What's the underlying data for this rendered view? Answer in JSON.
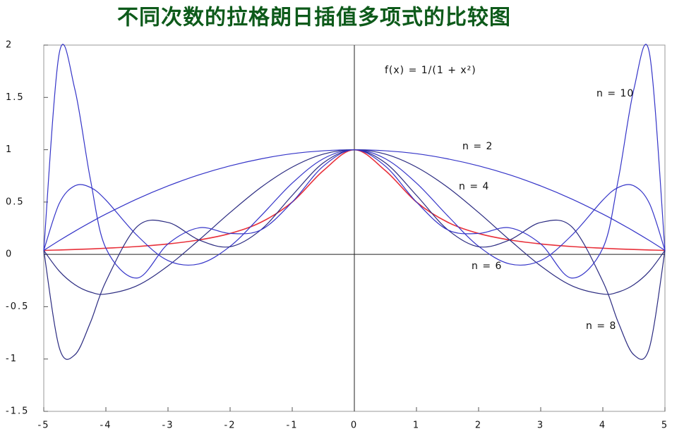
{
  "chart_data": {
    "type": "line",
    "title": "不同次数的拉格朗日插值多项式的比较图",
    "x": [
      -5,
      -4.75,
      -4.5,
      -4.25,
      -4,
      -3.5,
      -3,
      -2.5,
      -2,
      -1.5,
      -1,
      -0.5,
      0,
      0.5,
      1,
      1.5,
      2,
      2.5,
      3,
      3.5,
      4,
      4.25,
      4.5,
      4.75,
      5
    ],
    "series": [
      {
        "name": "f(x) = 1/(1 + x²)",
        "color": "#e8303a",
        "values": [
          0.038,
          0.042,
          0.047,
          0.052,
          0.059,
          0.075,
          0.1,
          0.138,
          0.2,
          0.308,
          0.5,
          0.8,
          1,
          0.8,
          0.5,
          0.308,
          0.2,
          0.138,
          0.1,
          0.075,
          0.059,
          0.052,
          0.047,
          0.042,
          0.038
        ]
      },
      {
        "name": "n = 2",
        "color": "#3434c8",
        "values": [
          0.038,
          0.132,
          0.221,
          0.305,
          0.385,
          0.529,
          0.654,
          0.76,
          0.846,
          0.913,
          0.962,
          0.99,
          1,
          0.99,
          0.962,
          0.913,
          0.846,
          0.76,
          0.654,
          0.529,
          0.385,
          0.305,
          0.221,
          0.132,
          0.038
        ]
      },
      {
        "name": "n = 4",
        "color": "#2a2a80",
        "values": [
          0.038,
          -0.16,
          -0.289,
          -0.36,
          -0.379,
          -0.3,
          -0.11,
          0.138,
          0.4,
          0.642,
          0.834,
          0.958,
          1,
          0.958,
          0.834,
          0.642,
          0.4,
          0.138,
          -0.11,
          -0.3,
          -0.379,
          -0.36,
          -0.289,
          -0.16,
          0.038
        ]
      },
      {
        "name": "n = 6",
        "color": "#3434c8",
        "values": [
          0.038,
          0.487,
          0.655,
          0.64,
          0.519,
          0.182,
          -0.059,
          -0.091,
          0.077,
          0.37,
          0.681,
          0.914,
          1,
          0.914,
          0.681,
          0.37,
          0.077,
          -0.091,
          -0.059,
          0.182,
          0.519,
          0.64,
          0.655,
          0.487,
          0.038
        ]
      },
      {
        "name": "n = 8",
        "color": "#2a2a80",
        "values": [
          0.038,
          -0.892,
          -0.96,
          -0.652,
          -0.259,
          0.264,
          0.305,
          0.138,
          0.073,
          0.237,
          0.564,
          0.874,
          1,
          0.874,
          0.564,
          0.237,
          0.073,
          0.138,
          0.305,
          0.264,
          -0.259,
          -0.652,
          -0.96,
          -0.892,
          0.038
        ]
      },
      {
        "name": "n = 10",
        "color": "#3434c8",
        "values": [
          0.038,
          1.924,
          1.579,
          0.719,
          0.059,
          -0.226,
          0.1,
          0.254,
          0.2,
          0.235,
          0.5,
          0.843,
          1,
          0.843,
          0.5,
          0.235,
          0.2,
          0.254,
          0.1,
          -0.226,
          0.059,
          0.719,
          1.579,
          1.924,
          0.038
        ]
      }
    ],
    "xlim": [
      -5,
      5
    ],
    "ylim": [
      -1.5,
      2
    ],
    "xticks": [
      -5,
      -4,
      -3,
      -2,
      -1,
      0,
      1,
      2,
      3,
      4,
      5
    ],
    "yticks": [
      -1.5,
      -1,
      -0.5,
      0,
      0.5,
      1,
      1.5,
      2
    ]
  }
}
